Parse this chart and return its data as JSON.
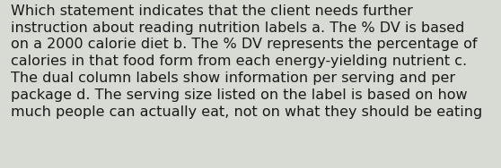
{
  "lines": [
    "Which statement indicates that the client needs further",
    "instruction about reading nutrition labels a. The % DV is based",
    "on a 2000 calorie diet b. The % DV represents the percentage of",
    "calories in that food form from each energy-yielding nutrient c.",
    "The dual column labels show information per serving and per",
    "package d. The serving size listed on the label is based on how",
    "much people can actually eat, not on what they should be eating"
  ],
  "background_color": "#d8dbd3",
  "text_color": "#1a1a1a",
  "font_size": 11.5,
  "fig_width": 5.58,
  "fig_height": 1.88
}
